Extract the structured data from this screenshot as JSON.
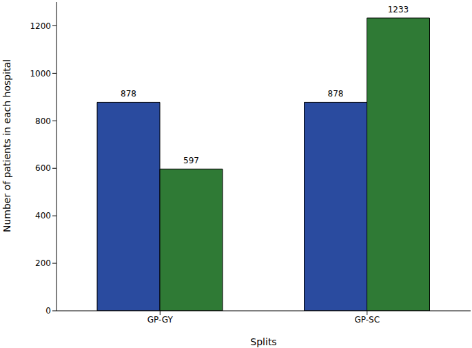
{
  "chart_data": {
    "type": "bar",
    "categories": [
      "GP-GY",
      "GP-SC"
    ],
    "series": [
      {
        "color": "#2a4b9f",
        "values": [
          878,
          878
        ]
      },
      {
        "color": "#2f7a35",
        "values": [
          597,
          1233
        ]
      }
    ],
    "xlabel": "Splits",
    "ylabel": "Number of patients in each hospital",
    "ylim": [
      0,
      1300
    ],
    "yticks": [
      0,
      200,
      400,
      600,
      800,
      1000,
      1200
    ],
    "data_labels": true
  }
}
